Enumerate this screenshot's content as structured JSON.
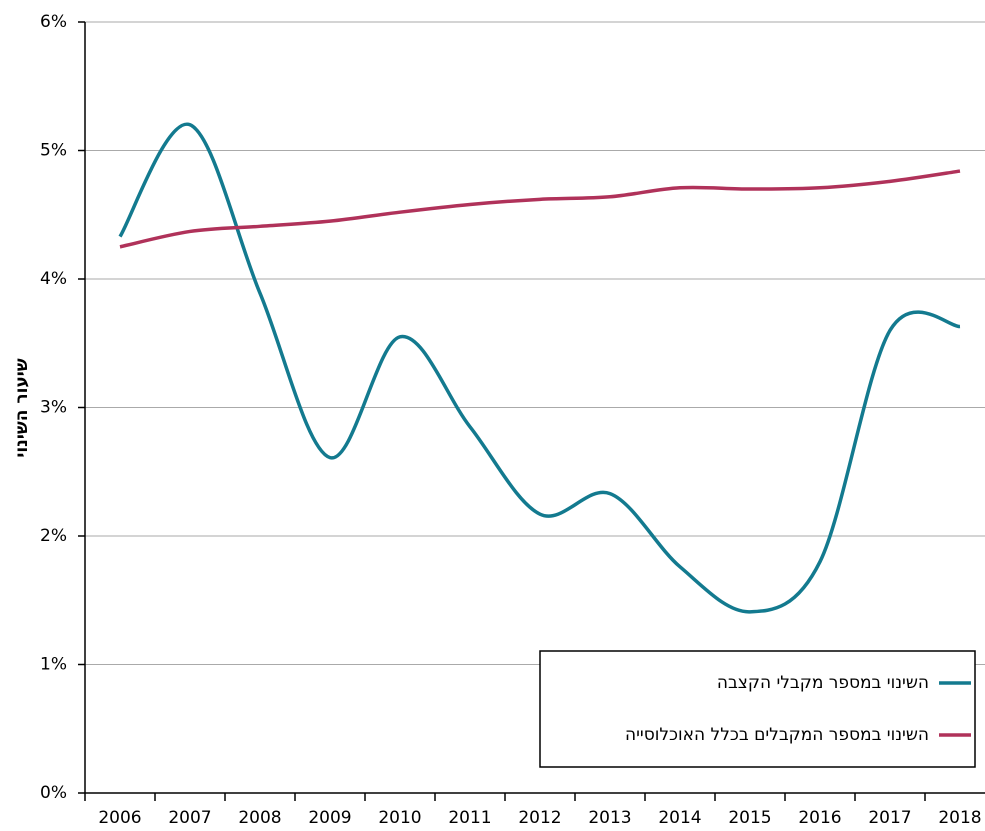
{
  "chart_data": {
    "type": "line",
    "y_label": "שיעור השינוי",
    "categories": [
      "2006",
      "2007",
      "2008",
      "2009",
      "2010",
      "2011",
      "2012",
      "2013",
      "2014",
      "2015",
      "2016",
      "2017",
      "2018"
    ],
    "series": [
      {
        "name": "השינוי במספר מקבלי הקצבה",
        "color": "#137a8f",
        "values": [
          4.33,
          5.2,
          3.89,
          2.61,
          3.55,
          2.85,
          2.17,
          2.33,
          1.76,
          1.41,
          1.8,
          3.6,
          3.63
        ]
      },
      {
        "name": "השינוי במספר המקבלים בכלל האוכלוסייה",
        "color": "#b0325a",
        "values": [
          4.25,
          4.37,
          4.41,
          4.45,
          4.52,
          4.58,
          4.62,
          4.64,
          4.71,
          4.7,
          4.71,
          4.76,
          4.84
        ]
      }
    ],
    "ylim": [
      0,
      6
    ],
    "yticks": [
      {
        "value": 0,
        "label": "0%"
      },
      {
        "value": 1,
        "label": "1%"
      },
      {
        "value": 2,
        "label": "2%"
      },
      {
        "value": 3,
        "label": "3%"
      },
      {
        "value": 4,
        "label": "4%"
      },
      {
        "value": 5,
        "label": "5%"
      },
      {
        "value": 6,
        "label": "6%"
      }
    ],
    "grid": true,
    "legend": "lower right"
  }
}
